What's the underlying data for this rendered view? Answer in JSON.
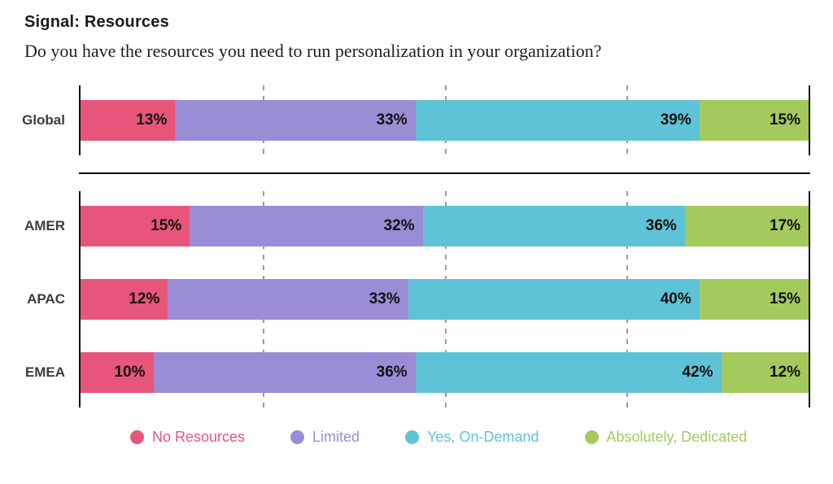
{
  "header": {
    "title": "Signal: Resources",
    "subtitle": "Do you have the resources you need to run personalization in your organization?"
  },
  "chart_data": {
    "type": "bar",
    "stacked": true,
    "orientation": "horizontal",
    "xlim": [
      0,
      100
    ],
    "unit": "%",
    "gridlines_pct": [
      25,
      50,
      75
    ],
    "grid": "dashed-vertical",
    "legend_position": "bottom",
    "categories": [
      "Global",
      "AMER",
      "APAC",
      "EMEA"
    ],
    "legend": [
      {
        "label": "No Resources",
        "color": "#E8557A"
      },
      {
        "label": "Limited",
        "color": "#9B8CD6"
      },
      {
        "label": "Yes, On-Demand",
        "color": "#5FC3D7"
      },
      {
        "label": "Absolutely, Dedicated",
        "color": "#A4CA5E"
      }
    ],
    "rows": [
      {
        "category": "Global",
        "segments": [
          {
            "series": "No Resources",
            "value": 13,
            "label": "13%"
          },
          {
            "series": "Limited",
            "value": 33,
            "label": "33%"
          },
          {
            "series": "Yes, On-Demand",
            "value": 39,
            "label": "39%"
          },
          {
            "series": "Absolutely, Dedicated",
            "value": 15,
            "label": "15%"
          }
        ]
      },
      {
        "category": "AMER",
        "segments": [
          {
            "series": "No Resources",
            "value": 15,
            "label": "15%"
          },
          {
            "series": "Limited",
            "value": 32,
            "label": "32%"
          },
          {
            "series": "Yes, On-Demand",
            "value": 36,
            "label": "36%"
          },
          {
            "series": "Absolutely, Dedicated",
            "value": 17,
            "label": "17%"
          }
        ]
      },
      {
        "category": "APAC",
        "segments": [
          {
            "series": "No Resources",
            "value": 12,
            "label": "12%"
          },
          {
            "series": "Limited",
            "value": 33,
            "label": "33%"
          },
          {
            "series": "Yes, On-Demand",
            "value": 40,
            "label": "40%"
          },
          {
            "series": "Absolutely, Dedicated",
            "value": 15,
            "label": "15%"
          }
        ]
      },
      {
        "category": "EMEA",
        "segments": [
          {
            "series": "No Resources",
            "value": 10,
            "label": "10%"
          },
          {
            "series": "Limited",
            "value": 36,
            "label": "36%"
          },
          {
            "series": "Yes, On-Demand",
            "value": 42,
            "label": "42%"
          },
          {
            "series": "Absolutely, Dedicated",
            "value": 12,
            "label": "12%"
          }
        ]
      }
    ],
    "colors": {
      "axis_line": "#111111",
      "gridline": "#9a9a9a",
      "segment_value_text": "#111111",
      "row_label_text": "#3c3c3c"
    }
  }
}
